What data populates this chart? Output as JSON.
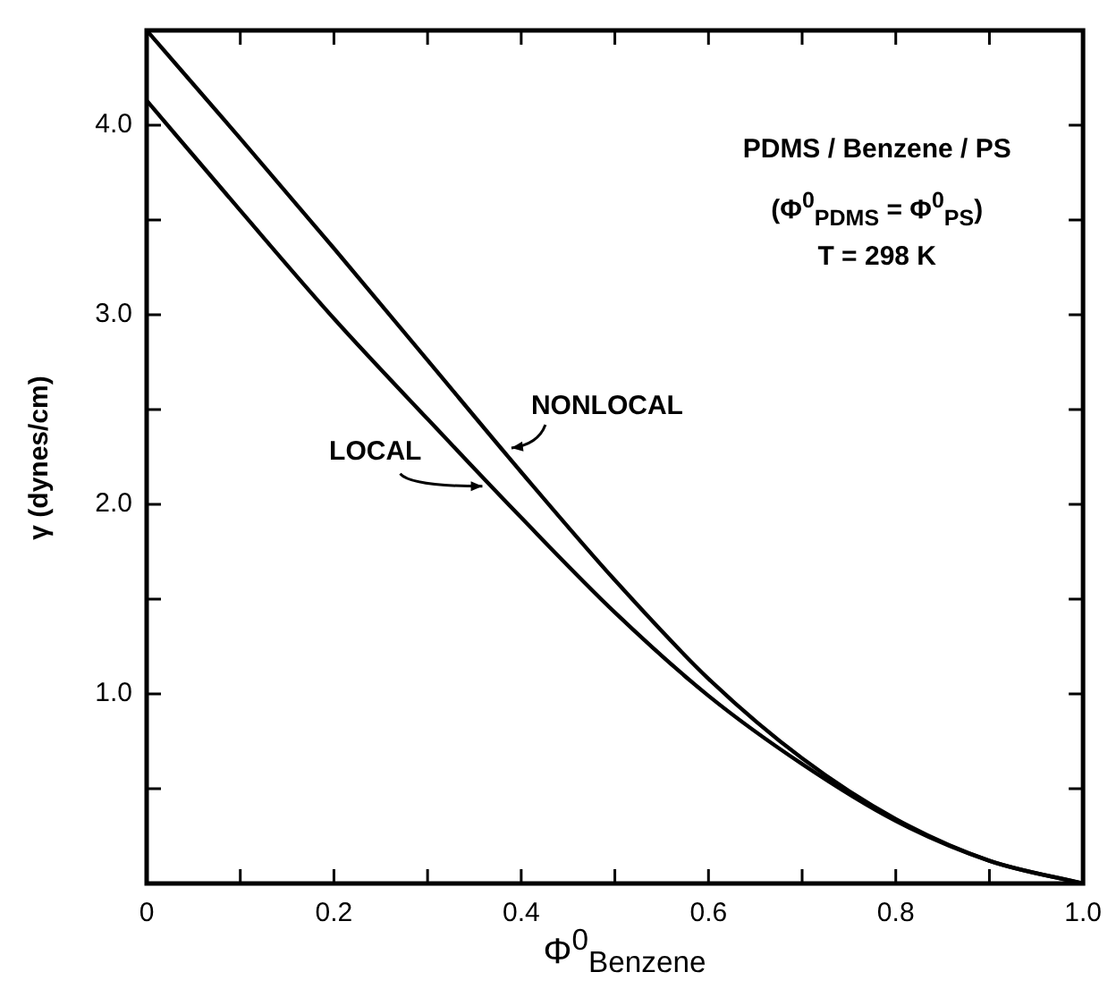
{
  "chart_data": {
    "type": "line",
    "xlabel": "Φ$^{0}$$_{Benzene}$",
    "ylabel": "γ (dynes/cm)",
    "x": [
      0,
      0.1,
      0.2,
      0.3,
      0.4,
      0.5,
      0.6,
      0.7,
      0.8,
      0.9,
      1.0
    ],
    "series": [
      {
        "name": "NONLOCAL",
        "color": "#000000",
        "values": [
          4.5,
          3.93,
          3.35,
          2.76,
          2.17,
          1.6,
          1.08,
          0.66,
          0.34,
          0.12,
          0
        ]
      },
      {
        "name": "LOCAL",
        "color": "#000000",
        "values": [
          4.13,
          3.55,
          2.98,
          2.45,
          1.93,
          1.43,
          0.99,
          0.63,
          0.33,
          0.12,
          0
        ]
      }
    ],
    "xlim": [
      0,
      1.0
    ],
    "ylim": [
      0,
      4.5
    ],
    "xticks": [
      0,
      {
        "value": 0.1,
        "label": null
      },
      {
        "value": 0.2,
        "label": "0.2"
      },
      {
        "value": 0.3,
        "label": null
      },
      {
        "value": 0.4,
        "label": "0.4"
      },
      {
        "value": 0.5,
        "label": null
      },
      {
        "value": 0.6,
        "label": "0.6"
      },
      {
        "value": 0.7,
        "label": null
      },
      {
        "value": 0.8,
        "label": "0.8"
      },
      {
        "value": 0.9,
        "label": null
      },
      {
        "value": 1.0,
        "label": "1.0"
      }
    ],
    "yticks": [
      {
        "value": 0.5,
        "label": null
      },
      {
        "value": 1.0,
        "label": "1.0"
      },
      {
        "value": 1.5,
        "label": null
      },
      {
        "value": 2.0,
        "label": "2.0"
      },
      {
        "value": 2.5,
        "label": null
      },
      {
        "value": 3.0,
        "label": "3.0"
      },
      {
        "value": 3.5,
        "label": null
      },
      {
        "value": 4.0,
        "label": "4.0"
      }
    ],
    "annotations": [
      "PDMS / Benzene / PS",
      "(Φ$^{0}$$_{PDMS}$ = Φ$^{0}$$_{PS}$)",
      "T = 298 K"
    ],
    "grid": false,
    "legend": false,
    "marker": "none",
    "line_style": "solid"
  }
}
